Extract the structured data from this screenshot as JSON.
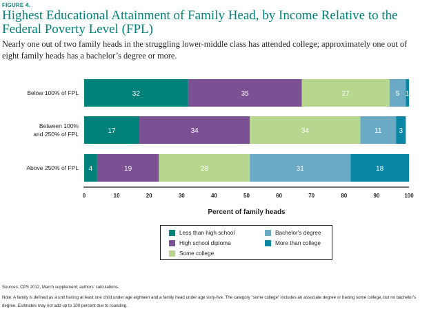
{
  "figure_label": "FIGURE 4.",
  "title": "Highest Educational Attainment of Family Head, by Income Relative to the Federal Poverty Level (FPL)",
  "subtitle": "Nearly one out of two family heads in the struggling lower-middle class has attended college; approximately one out of eight family heads has a bachelor’s degree or more.",
  "sources": "Sources: CPS 2012, March supplement; authors’ calculations.",
  "note": "Note: A family is defined as a unit having at least one child under age eighteen and a family head under age sixty-five. The category \"some college\" includes an associate degree or having some college, but no bachelor’s degree. Estimates may not add up to 100 percent due to rounding.",
  "chart_data": {
    "type": "bar",
    "orientation": "horizontal",
    "stacked": true,
    "title": "Highest Educational Attainment of Family Head, by Income Relative to the Federal Poverty Level (FPL)",
    "xlabel": "Percent of family heads",
    "ylabel": "",
    "xlim": [
      0,
      100
    ],
    "xticks": [
      0,
      10,
      20,
      30,
      40,
      50,
      60,
      70,
      80,
      90,
      100
    ],
    "grid": false,
    "legend_position": "bottom-center",
    "categories": [
      "Below 100% of FPL",
      "Between 100% and 250% of FPL",
      "Above 250% of FPL"
    ],
    "category_lines": [
      [
        "Below 100% of FPL"
      ],
      [
        "Between 100%",
        "and 250% of FPL"
      ],
      [
        "Above 250% of FPL"
      ]
    ],
    "series": [
      {
        "name": "Less than high school",
        "color": "#00827a",
        "values": [
          32,
          17,
          4
        ]
      },
      {
        "name": "High school diploma",
        "color": "#7c5194",
        "values": [
          35,
          34,
          19
        ]
      },
      {
        "name": "Some college",
        "color": "#b8d78e",
        "values": [
          27,
          34,
          28
        ]
      },
      {
        "name": "Bachelor's degree",
        "color": "#6aaac4",
        "values": [
          5,
          11,
          31
        ]
      },
      {
        "name": "More than college",
        "color": "#0a86a6",
        "values": [
          1,
          3,
          18
        ]
      }
    ]
  },
  "legend": [
    {
      "label": "Less than high school",
      "color": "#00827a"
    },
    {
      "label": "High school diploma",
      "color": "#7c5194"
    },
    {
      "label": "Some college",
      "color": "#b8d78e"
    },
    {
      "label": "Bachelor's degree",
      "color": "#6aaac4"
    },
    {
      "label": "More than college",
      "color": "#0a86a6"
    }
  ]
}
